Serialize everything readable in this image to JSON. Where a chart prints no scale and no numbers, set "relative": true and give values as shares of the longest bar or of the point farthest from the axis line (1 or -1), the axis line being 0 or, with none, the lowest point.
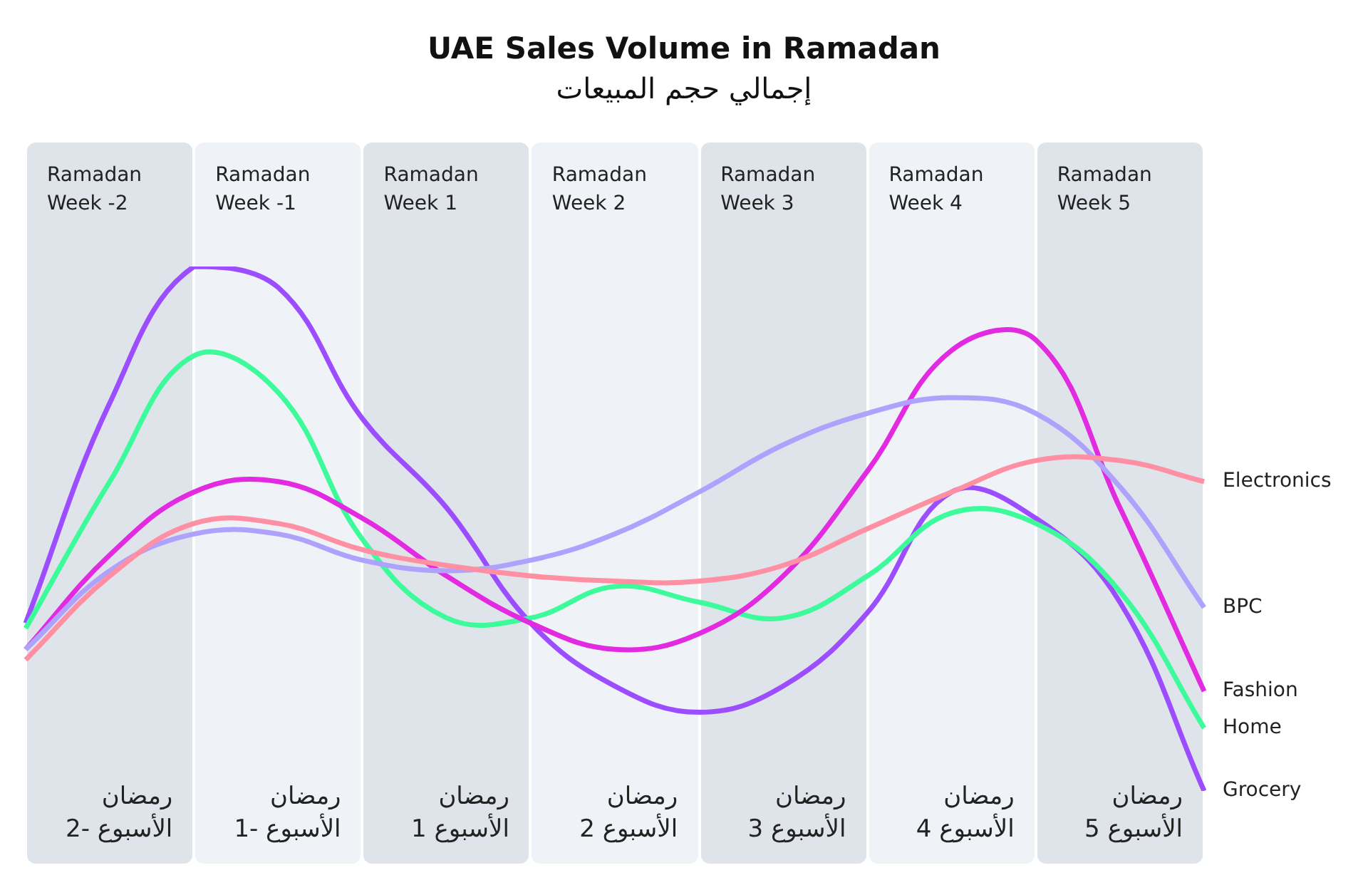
{
  "chart_data": {
    "type": "line",
    "title": "UAE Sales Volume in Ramadan",
    "subtitle": "إجمالي حجم المبيعات",
    "categories": [
      null,
      "Ramadan Week -2",
      null,
      "Ramadan Week -1",
      null,
      "Ramadan Week 1",
      null,
      "Ramadan Week 2",
      null,
      "Ramadan Week 3",
      null,
      "Ramadan Week 4",
      null,
      "Ramadan Week 5",
      null
    ],
    "annotations": [
      "رمضان الأسبوع -2",
      "رمضان الأسبوع -1",
      "رمضان الأسبوع 1",
      "رمضان الأسبوع 2",
      "رمضان الأسبوع 3",
      "رمضان الأسبوع 4",
      "رمضان الأسبوع 5"
    ],
    "relative": true,
    "legend": false,
    "marker": "none",
    "line_style": "solid",
    "series": [
      {
        "name": "Electronics",
        "color": "#ff8fa3",
        "values": [
          0.25,
          0.41,
          0.51,
          0.51,
          0.46,
          0.43,
          0.41,
          0.4,
          0.4,
          0.43,
          0.5,
          0.57,
          0.63,
          0.63,
          0.59
        ]
      },
      {
        "name": "BPC",
        "color": "#aea2fd",
        "values": [
          0.27,
          0.42,
          0.49,
          0.49,
          0.44,
          0.42,
          0.44,
          0.49,
          0.57,
          0.66,
          0.72,
          0.75,
          0.72,
          0.58,
          0.35
        ]
      },
      {
        "name": "Fashion",
        "color": "#e22be0",
        "values": [
          0.27,
          0.45,
          0.57,
          0.59,
          0.52,
          0.41,
          0.32,
          0.27,
          0.3,
          0.41,
          0.61,
          0.84,
          0.86,
          0.54,
          0.19
        ]
      },
      {
        "name": "Home",
        "color": "#3dfb9a",
        "values": [
          0.31,
          0.59,
          0.83,
          0.76,
          0.48,
          0.33,
          0.33,
          0.39,
          0.36,
          0.33,
          0.41,
          0.53,
          0.51,
          0.38,
          0.12
        ]
      },
      {
        "name": "Grocery",
        "color": "#9b4dff",
        "values": [
          0.32,
          0.74,
          1.0,
          0.96,
          0.71,
          0.54,
          0.32,
          0.2,
          0.15,
          0.2,
          0.34,
          0.57,
          0.52,
          0.36,
          0
        ]
      }
    ]
  }
}
